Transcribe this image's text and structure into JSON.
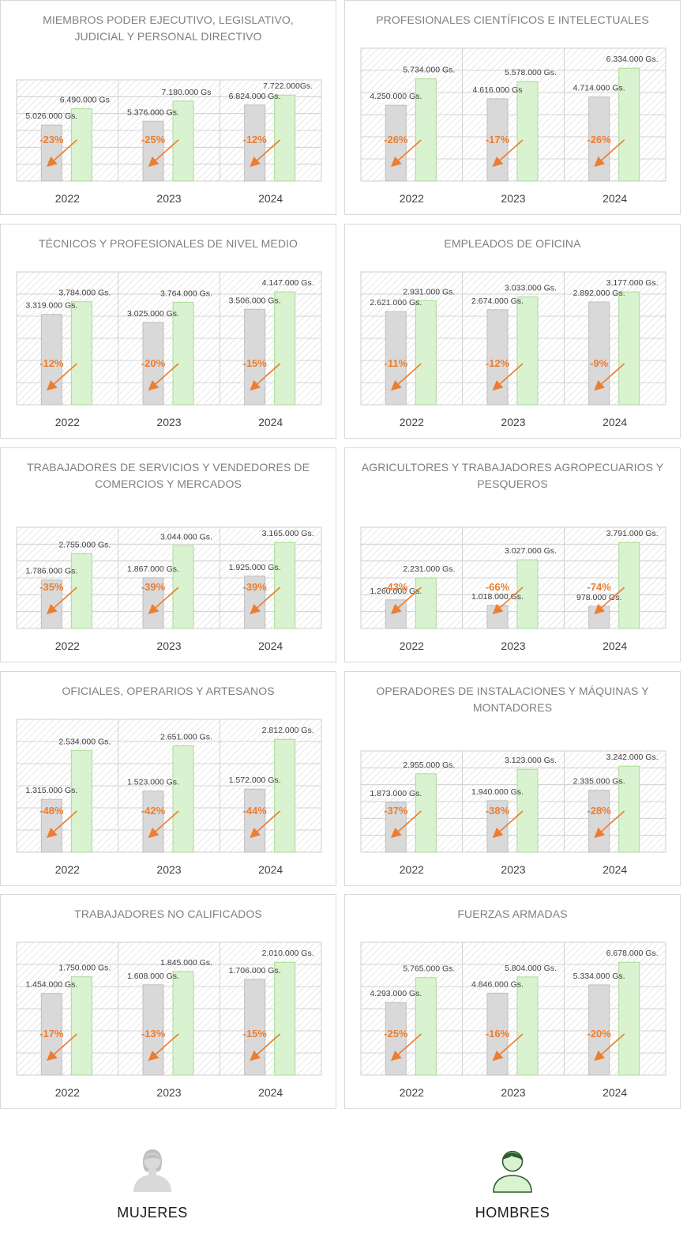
{
  "colors": {
    "mujeres_bar": "#d9d9d9",
    "mujeres_border": "#bfbfbf",
    "hombres_bar": "#d9f2d0",
    "hombres_border": "#a9dc95",
    "gap_arrow": "#ed7d31",
    "title_text": "#7f7f7f",
    "value_text": "#404040",
    "hatch": "#d4d4d4"
  },
  "legend": {
    "mujeres": {
      "label": "MUJERES",
      "icon": "woman-icon"
    },
    "hombres": {
      "label": "HOMBRES",
      "icon": "man-icon"
    }
  },
  "chart_data": [
    {
      "type": "bar",
      "title": "MIEMBROS PODER EJECUTIVO, LEGISLATIVO, JUDICIAL Y PERSONAL DIRECTIVO",
      "categories": [
        "2022",
        "2023",
        "2024"
      ],
      "series": [
        {
          "name": "MUJERES",
          "values": [
            5026000,
            5376000,
            6824000
          ],
          "labels": [
            "5.026.000 Gs.",
            "5.376.000 Gs.",
            "6.824.000 Gs."
          ]
        },
        {
          "name": "HOMBRES",
          "values": [
            6490000,
            7180000,
            7722000
          ],
          "labels": [
            "6.490.000 Gs",
            "7.180.000 Gs",
            "7.722.000Gs."
          ]
        }
      ],
      "gaps": [
        "-23%",
        "-25%",
        "-12%"
      ]
    },
    {
      "type": "bar",
      "title": "PROFESIONALES CIENTÍFICOS E INTELECTUALES",
      "categories": [
        "2022",
        "2023",
        "2024"
      ],
      "series": [
        {
          "name": "MUJERES",
          "values": [
            4250000,
            4616000,
            4714000
          ],
          "labels": [
            "4.250.000 Gs.",
            "4.616.000 Gs",
            "4.714.000 Gs."
          ]
        },
        {
          "name": "HOMBRES",
          "values": [
            5734000,
            5578000,
            6334000
          ],
          "labels": [
            "5.734.000 Gs.",
            "5.578.000 Gs.",
            "6.334.000 Gs."
          ]
        }
      ],
      "gaps": [
        "-26%",
        "-17%",
        "-26%"
      ]
    },
    {
      "type": "bar",
      "title": "TÉCNICOS Y PROFESIONALES DE NIVEL MEDIO",
      "categories": [
        "2022",
        "2023",
        "2024"
      ],
      "series": [
        {
          "name": "MUJERES",
          "values": [
            3319000,
            3025000,
            3506000
          ],
          "labels": [
            "3.319.000 Gs.",
            "3.025.000 Gs.",
            "3.506.000 Gs."
          ]
        },
        {
          "name": "HOMBRES",
          "values": [
            3784000,
            3764000,
            4147000
          ],
          "labels": [
            "3.784.000 Gs.",
            "3.764.000 Gs.",
            "4.147.000 Gs."
          ]
        }
      ],
      "gaps": [
        "-12%",
        "-20%",
        "-15%"
      ]
    },
    {
      "type": "bar",
      "title": "EMPLEADOS DE OFICINA",
      "categories": [
        "2022",
        "2023",
        "2024"
      ],
      "series": [
        {
          "name": "MUJERES",
          "values": [
            2621000,
            2674000,
            2892000
          ],
          "labels": [
            "2.621.000 Gs.",
            "2.674.000 Gs.",
            "2.892.000 Gs."
          ]
        },
        {
          "name": "HOMBRES",
          "values": [
            2931000,
            3033000,
            3177000
          ],
          "labels": [
            "2.931.000 Gs.",
            "3.033.000 Gs.",
            "3.177.000 Gs."
          ]
        }
      ],
      "gaps": [
        "-11%",
        "-12%",
        "-9%"
      ]
    },
    {
      "type": "bar",
      "title": "TRABAJADORES DE SERVICIOS Y VENDEDORES DE COMERCIOS Y MERCADOS",
      "categories": [
        "2022",
        "2023",
        "2024"
      ],
      "series": [
        {
          "name": "MUJERES",
          "values": [
            1786000,
            1867000,
            1925000
          ],
          "labels": [
            "1.786.000 Gs.",
            "1.867.000 Gs.",
            "1.925.000 Gs."
          ]
        },
        {
          "name": "HOMBRES",
          "values": [
            2755000,
            3044000,
            3165000
          ],
          "labels": [
            "2.755.000 Gs.",
            "3.044.000 Gs.",
            "3.165.000 Gs."
          ]
        }
      ],
      "gaps": [
        "-35%",
        "-39%",
        "-39%"
      ]
    },
    {
      "type": "bar",
      "title": "AGRICULTORES Y TRABAJADORES AGROPECUARIOS Y PESQUEROS",
      "categories": [
        "2022",
        "2023",
        "2024"
      ],
      "series": [
        {
          "name": "MUJERES",
          "values": [
            1260000,
            1018000,
            978000
          ],
          "labels": [
            "1.260.000 Gs.",
            "1.018.000 Gs.",
            "978.000 Gs."
          ]
        },
        {
          "name": "HOMBRES",
          "values": [
            2231000,
            3027000,
            3791000
          ],
          "labels": [
            "2.231.000 Gs.",
            "3.027.000 Gs.",
            "3.791.000 Gs."
          ]
        }
      ],
      "gaps": [
        "-43%",
        "-66%",
        "-74%"
      ]
    },
    {
      "type": "bar",
      "title": "OFICIALES, OPERARIOS Y ARTESANOS",
      "categories": [
        "2022",
        "2023",
        "2024"
      ],
      "series": [
        {
          "name": "MUJERES",
          "values": [
            1315000,
            1523000,
            1572000
          ],
          "labels": [
            "1.315.000 Gs.",
            "1.523.000 Gs.",
            "1.572.000 Gs."
          ]
        },
        {
          "name": "HOMBRES",
          "values": [
            2534000,
            2651000,
            2812000
          ],
          "labels": [
            "2.534.000 Gs.",
            "2.651.000 Gs.",
            "2.812.000 Gs."
          ]
        }
      ],
      "gaps": [
        "-48%",
        "-42%",
        "-44%"
      ]
    },
    {
      "type": "bar",
      "title": "OPERADORES DE INSTALACIONES Y MÁQUINAS Y MONTADORES",
      "categories": [
        "2022",
        "2023",
        "2024"
      ],
      "series": [
        {
          "name": "MUJERES",
          "values": [
            1873000,
            1940000,
            2335000
          ],
          "labels": [
            "1.873.000 Gs.",
            "1.940.000 Gs.",
            "2.335.000 Gs."
          ]
        },
        {
          "name": "HOMBRES",
          "values": [
            2955000,
            3123000,
            3242000
          ],
          "labels": [
            "2.955.000 Gs.",
            "3.123.000 Gs.",
            "3.242.000 Gs."
          ]
        }
      ],
      "gaps": [
        "-37%",
        "-38%",
        "-28%"
      ]
    },
    {
      "type": "bar",
      "title": "TRABAJADORES NO CALIFICADOS",
      "categories": [
        "2022",
        "2023",
        "2024"
      ],
      "series": [
        {
          "name": "MUJERES",
          "values": [
            1454000,
            1608000,
            1706000
          ],
          "labels": [
            "1.454.000 Gs.",
            "1.608.000 Gs.",
            "1.706.000 Gs."
          ]
        },
        {
          "name": "HOMBRES",
          "values": [
            1750000,
            1845000,
            2010000
          ],
          "labels": [
            "1.750.000 Gs.",
            "1.845.000 Gs.",
            "2.010.000 Gs."
          ]
        }
      ],
      "gaps": [
        "-17%",
        "-13%",
        "-15%"
      ]
    },
    {
      "type": "bar",
      "title": "FUERZAS ARMADAS",
      "categories": [
        "2022",
        "2023",
        "2024"
      ],
      "series": [
        {
          "name": "MUJERES",
          "values": [
            4293000,
            4846000,
            5334000
          ],
          "labels": [
            "4.293.000 Gs.",
            "4.846.000 Gs.",
            "5.334.000 Gs."
          ]
        },
        {
          "name": "HOMBRES",
          "values": [
            5765000,
            5804000,
            6678000
          ],
          "labels": [
            "5.765.000 Gs.",
            "5.804.000 Gs.",
            "6.678.000 Gs."
          ]
        }
      ],
      "gaps": [
        "-25%",
        "-16%",
        "-20%"
      ]
    }
  ]
}
